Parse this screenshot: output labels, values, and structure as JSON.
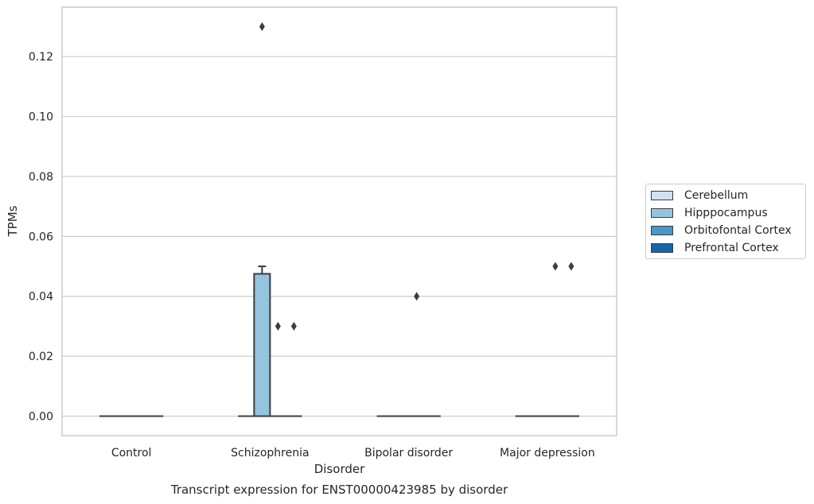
{
  "chart_data": {
    "type": "box",
    "title": "",
    "caption": "Transcript expression for ENST00000423985 by disorder",
    "xlabel": "Disorder",
    "ylabel": "TPMs",
    "categories": [
      "Control",
      "Schizophrenia",
      "Bipolar disorder",
      "Major depression"
    ],
    "ylim": [
      -0.0065,
      0.1365
    ],
    "yticks": [
      0.0,
      0.02,
      0.04,
      0.06,
      0.08,
      0.1,
      0.12
    ],
    "ytick_labels": [
      "0.00",
      "0.02",
      "0.04",
      "0.06",
      "0.08",
      "0.10",
      "0.12"
    ],
    "grid": true,
    "legend_position": "right",
    "series": [
      {
        "name": "Cerebellum",
        "color": "#d0e1f2",
        "boxes": [
          {
            "category": "Control",
            "q1": 0,
            "median": 0,
            "q3": 0,
            "whisker_low": 0,
            "whisker_high": 0,
            "outliers": []
          },
          {
            "category": "Schizophrenia",
            "q1": 0,
            "median": 0,
            "q3": 0,
            "whisker_low": 0,
            "whisker_high": 0,
            "outliers": []
          },
          {
            "category": "Bipolar disorder",
            "q1": 0,
            "median": 0,
            "q3": 0,
            "whisker_low": 0,
            "whisker_high": 0,
            "outliers": []
          },
          {
            "category": "Major depression",
            "q1": 0,
            "median": 0,
            "q3": 0,
            "whisker_low": 0,
            "whisker_high": 0,
            "outliers": []
          }
        ]
      },
      {
        "name": "Hipppocampus",
        "color": "#94c4df",
        "boxes": [
          {
            "category": "Control",
            "q1": 0,
            "median": 0,
            "q3": 0,
            "whisker_low": 0,
            "whisker_high": 0,
            "outliers": []
          },
          {
            "category": "Schizophrenia",
            "q1": 0,
            "median": 0,
            "q3": 0.0475,
            "whisker_low": 0,
            "whisker_high": 0.05,
            "outliers": [
              0.13
            ]
          },
          {
            "category": "Bipolar disorder",
            "q1": 0,
            "median": 0,
            "q3": 0,
            "whisker_low": 0,
            "whisker_high": 0,
            "outliers": []
          },
          {
            "category": "Major depression",
            "q1": 0,
            "median": 0,
            "q3": 0,
            "whisker_low": 0,
            "whisker_high": 0,
            "outliers": []
          }
        ]
      },
      {
        "name": "Orbitofontal Cortex",
        "color": "#4a98c9",
        "boxes": [
          {
            "category": "Control",
            "q1": 0,
            "median": 0,
            "q3": 0,
            "whisker_low": 0,
            "whisker_high": 0,
            "outliers": []
          },
          {
            "category": "Schizophrenia",
            "q1": 0,
            "median": 0,
            "q3": 0,
            "whisker_low": 0,
            "whisker_high": 0,
            "outliers": [
              0.03
            ]
          },
          {
            "category": "Bipolar disorder",
            "q1": 0,
            "median": 0,
            "q3": 0,
            "whisker_low": 0,
            "whisker_high": 0,
            "outliers": [
              0.04
            ]
          },
          {
            "category": "Major depression",
            "q1": 0,
            "median": 0,
            "q3": 0,
            "whisker_low": 0,
            "whisker_high": 0,
            "outliers": [
              0.05
            ]
          }
        ]
      },
      {
        "name": "Prefrontal Cortex",
        "color": "#1764ab",
        "boxes": [
          {
            "category": "Control",
            "q1": 0,
            "median": 0,
            "q3": 0,
            "whisker_low": 0,
            "whisker_high": 0,
            "outliers": []
          },
          {
            "category": "Schizophrenia",
            "q1": 0,
            "median": 0,
            "q3": 0,
            "whisker_low": 0,
            "whisker_high": 0,
            "outliers": [
              0.03
            ]
          },
          {
            "category": "Bipolar disorder",
            "q1": 0,
            "median": 0,
            "q3": 0,
            "whisker_low": 0,
            "whisker_high": 0,
            "outliers": []
          },
          {
            "category": "Major depression",
            "q1": 0,
            "median": 0,
            "q3": 0,
            "whisker_low": 0,
            "whisker_high": 0,
            "outliers": [
              0.05
            ]
          }
        ]
      }
    ]
  }
}
